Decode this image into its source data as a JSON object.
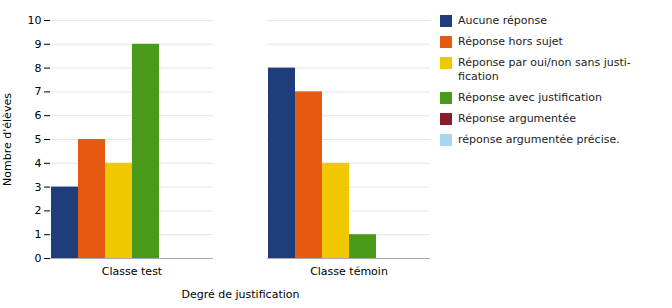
{
  "chart_data": {
    "type": "bar",
    "categories": [
      "Classe test",
      "Classe témoin"
    ],
    "series": [
      {
        "name": "Aucune réponse",
        "values": [
          3,
          8
        ],
        "color": "#1f3d7a"
      },
      {
        "name": "Réponse hors sujet",
        "values": [
          5,
          7
        ],
        "color": "#e55a10"
      },
      {
        "name": "Réponse par oui/non sans justi-\nfication",
        "values": [
          4,
          4
        ],
        "color": "#f0c800"
      },
      {
        "name": "Réponse avec justification",
        "values": [
          9,
          1
        ],
        "color": "#4a9a1a"
      },
      {
        "name": "Réponse argumentée",
        "values": [
          0,
          0
        ],
        "color": "#8b1a2a"
      },
      {
        "name": "réponse argumentée précise.",
        "values": [
          0,
          0
        ],
        "color": "#a8d8f0"
      }
    ],
    "xlabel": "Degré de justification",
    "ylabel": "Nombre d'élèves",
    "ylim": [
      0,
      10
    ],
    "yticks": [
      0,
      1,
      2,
      3,
      4,
      5,
      6,
      7,
      8,
      9,
      10
    ],
    "grid": true,
    "legend": "right"
  }
}
